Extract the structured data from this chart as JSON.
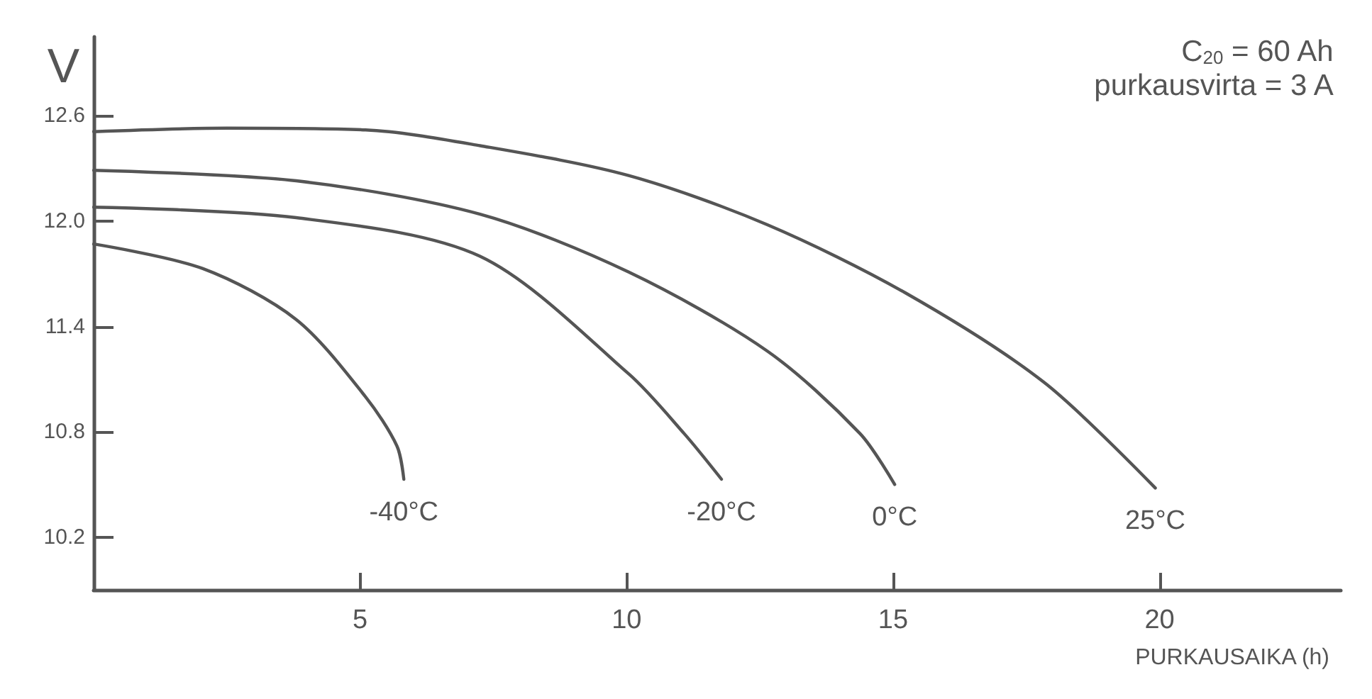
{
  "chart_data": {
    "type": "line",
    "xlabel": "PURKAUSAIKA (h)",
    "ylabel": "V",
    "annotations": [
      "C$_{20}$ = 60 Ah",
      "purkausvirta = 3 A"
    ],
    "xlim": [
      0,
      23.4
    ],
    "xticks": [
      5,
      10,
      15,
      20
    ],
    "ylim": [
      9.9,
      13.05
    ],
    "yticks": [
      10.2,
      10.8,
      11.4,
      {
        "value": 12,
        "label": "12.0"
      },
      12.6
    ],
    "grid": false,
    "marker": "none",
    "line_style": "solid",
    "series": [
      {
        "name": "25°C",
        "color": "#555555",
        "x": [
          0,
          2.5,
          5.1,
          7.25,
          10.04,
          12.64,
          15.24,
          17.84,
          19.92
        ],
        "values": [
          12.51,
          12.53,
          12.52,
          12.43,
          12.26,
          11.98,
          11.59,
          11.08,
          10.48
        ]
      },
      {
        "name": "0°C",
        "color": "#555555",
        "x": [
          0,
          3.8,
          7.25,
          10.04,
          12.64,
          14.38,
          15.03
        ],
        "values": [
          12.29,
          12.23,
          12.04,
          11.71,
          11.26,
          10.79,
          10.5
        ]
      },
      {
        "name": "-20°C",
        "color": "#555555",
        "x": [
          0,
          3.8,
          7.25,
          10.04,
          11.08,
          11.78
        ],
        "values": [
          12.08,
          12.02,
          11.8,
          11.13,
          10.79,
          10.53
        ]
      },
      {
        "name": "-40°C",
        "color": "#555555",
        "x": [
          0,
          2.05,
          3.8,
          5.1,
          5.69,
          5.82
        ],
        "values": [
          11.87,
          11.73,
          11.44,
          11.0,
          10.72,
          10.53
        ]
      }
    ]
  }
}
